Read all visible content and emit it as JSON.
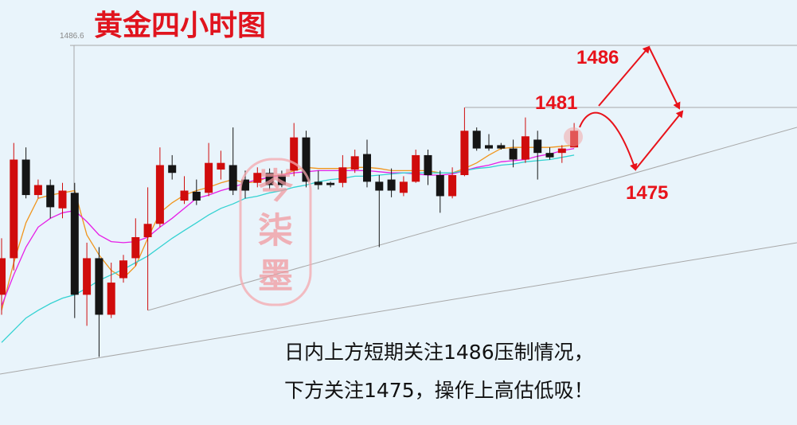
{
  "chart_data": {
    "type": "candlestick",
    "title": "黄金四小时图",
    "ylim": [
      1452.35,
      1490.7
    ],
    "yticks": [
      1486.6
    ],
    "up_color": "#d00c0c",
    "down_color": "#151515",
    "open": [
      1464.1,
      1467.4,
      1476.3,
      1473.1,
      1474.0,
      1471.9,
      1473.3,
      1464.1,
      1467.4,
      1462.3,
      1465.6,
      1467.4,
      1469.3,
      1470.5,
      1475.8,
      1472.6,
      1473.4,
      1473.3,
      1475.4,
      1475.8,
      1474.5,
      1474.2,
      1475.1,
      1474.9,
      1475.3,
      1478.3,
      1474.3,
      1474.2,
      1474.2,
      1475.4,
      1476.8,
      1474.3,
      1474.5,
      1473.3,
      1474.3,
      1476.7,
      1474.9,
      1473.0,
      1474.9,
      1478.9,
      1477.6,
      1477.6,
      1477.3,
      1476.3,
      1478.1,
      1476.9,
      1476.9,
      1477.4
    ],
    "high": [
      1469.2,
      1477.8,
      1477.4,
      1474.5,
      1474.5,
      1474.2,
      1474.2,
      1468.8,
      1468.4,
      1467.0,
      1467.7,
      1471.0,
      1473.8,
      1477.4,
      1476.7,
      1474.8,
      1474.5,
      1477.8,
      1477.1,
      1479.2,
      1475.3,
      1475.6,
      1475.5,
      1475.3,
      1479.6,
      1478.9,
      1475.3,
      1474.3,
      1476.7,
      1477.2,
      1478.1,
      1474.9,
      1475.5,
      1474.8,
      1477.2,
      1477.2,
      1475.3,
      1475.6,
      1481.0,
      1479.2,
      1478.6,
      1477.8,
      1478.1,
      1480.1,
      1478.9,
      1477.4,
      1477.6,
      1479.6
    ],
    "low": [
      1462.3,
      1466.3,
      1472.8,
      1472.8,
      1471.0,
      1471.0,
      1462.0,
      1461.3,
      1458.5,
      1462.0,
      1465.2,
      1466.7,
      1462.7,
      1470.2,
      1474.5,
      1472.3,
      1472.2,
      1473.0,
      1474.5,
      1473.1,
      1472.8,
      1473.8,
      1473.6,
      1473.8,
      1474.8,
      1473.8,
      1473.6,
      1473.8,
      1473.8,
      1475.1,
      1473.8,
      1468.4,
      1472.9,
      1473.0,
      1474.2,
      1474.0,
      1471.5,
      1472.8,
      1474.8,
      1477.1,
      1477.1,
      1477.2,
      1475.6,
      1476.0,
      1474.5,
      1476.3,
      1476.0,
      1477.4
    ],
    "close": [
      1467.4,
      1476.3,
      1473.1,
      1474.0,
      1472.0,
      1473.5,
      1464.1,
      1467.4,
      1462.3,
      1465.2,
      1467.2,
      1469.3,
      1470.5,
      1475.8,
      1475.1,
      1473.5,
      1472.6,
      1476.0,
      1476.0,
      1473.5,
      1473.5,
      1475.1,
      1474.0,
      1474.0,
      1478.3,
      1474.3,
      1474.0,
      1474.0,
      1475.6,
      1476.6,
      1474.3,
      1473.5,
      1473.5,
      1474.3,
      1476.7,
      1474.9,
      1473.0,
      1474.9,
      1478.9,
      1477.3,
      1477.3,
      1477.3,
      1476.3,
      1478.4,
      1476.9,
      1476.5,
      1477.3,
      1478.9
    ],
    "series": [
      {
        "color": "#f0961e",
        "values": [
          1462.7,
          1467.0,
          1470.6,
          1472.8,
          1473.1,
          1473.3,
          1473.5,
          1469.5,
          1467.7,
          1466.3,
          1465.6,
          1466.7,
          1469.2,
          1471.5,
          1472.4,
          1473.1,
          1473.5,
          1473.8,
          1474.2,
          1474.5,
          1474.2,
          1474.3,
          1474.8,
          1474.9,
          1475.3,
          1475.6,
          1475.5,
          1475.5,
          1475.5,
          1475.6,
          1475.6,
          1475.5,
          1475.3,
          1475.3,
          1475.3,
          1475.3,
          1475.1,
          1475.1,
          1475.5,
          1476.0,
          1476.7,
          1477.3,
          1477.4,
          1477.4,
          1477.4,
          1477.4,
          1477.5,
          1477.6
        ]
      },
      {
        "color": "#e61ee6",
        "values": [
          1463.1,
          1465.9,
          1468.4,
          1470.2,
          1471.0,
          1471.5,
          1471.7,
          1470.7,
          1469.5,
          1468.9,
          1468.8,
          1468.9,
          1469.3,
          1470.2,
          1471.0,
          1471.9,
          1472.8,
          1473.1,
          1473.5,
          1473.8,
          1474.2,
          1474.5,
          1474.7,
          1474.9,
          1475.1,
          1475.2,
          1475.3,
          1475.3,
          1475.3,
          1475.3,
          1475.3,
          1475.2,
          1475.1,
          1475.1,
          1475.0,
          1474.9,
          1474.9,
          1475.0,
          1475.3,
          1475.6,
          1475.8,
          1476.1,
          1476.2,
          1476.3,
          1476.6,
          1476.8,
          1477.1,
          1477.3
        ]
      },
      {
        "color": "#34d2d2",
        "values": [
          1459.8,
          1460.9,
          1462.0,
          1462.7,
          1463.3,
          1463.8,
          1464.1,
          1464.7,
          1465.4,
          1465.9,
          1466.4,
          1467.0,
          1467.6,
          1468.4,
          1469.2,
          1469.9,
          1470.6,
          1471.3,
          1471.9,
          1472.3,
          1472.8,
          1473.0,
          1473.3,
          1473.5,
          1473.8,
          1474.0,
          1474.3,
          1474.5,
          1474.6,
          1474.8,
          1474.8,
          1474.9,
          1475.0,
          1475.1,
          1475.1,
          1475.1,
          1475.1,
          1475.1,
          1475.3,
          1475.5,
          1475.6,
          1475.8,
          1475.9,
          1476.1,
          1476.2,
          1476.3,
          1476.5,
          1476.7
        ]
      }
    ],
    "annotations": [
      "1486",
      "1481",
      "1475"
    ],
    "note": [
      "日内上方短期关注1486压制情况，",
      "下方关注1475，操作上高估低吸！"
    ],
    "watermark": [
      "岑",
      "柒",
      "墨"
    ]
  }
}
